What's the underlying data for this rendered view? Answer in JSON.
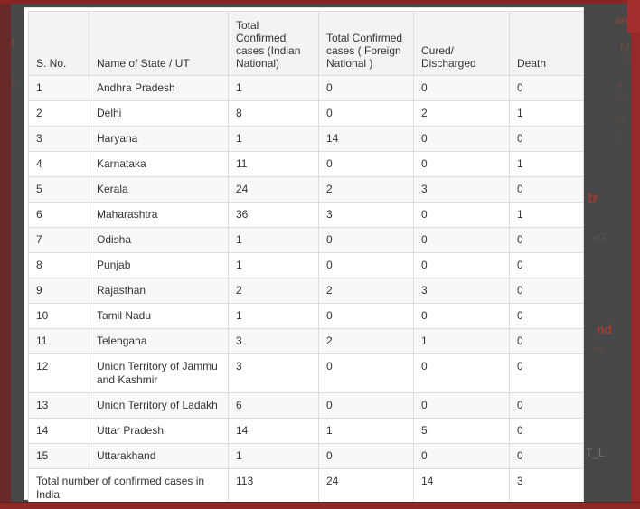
{
  "table": {
    "columns": [
      "S. No.",
      "Name of State / UT",
      "Total Confirmed\ncases (Indian\nNational)",
      "Total Confirmed\ncases ( Foreign\nNational )",
      "Cured/\nDischarged",
      "Death"
    ],
    "rows": [
      [
        "1",
        "Andhra Pradesh",
        "1",
        "0",
        "0",
        "0"
      ],
      [
        "2",
        "Delhi",
        "8",
        "0",
        "2",
        "1"
      ],
      [
        "3",
        "Haryana",
        "1",
        "14",
        "0",
        "0"
      ],
      [
        "4",
        "Karnataka",
        "11",
        "0",
        "0",
        "1"
      ],
      [
        "5",
        "Kerala",
        "24",
        "2",
        "3",
        "0"
      ],
      [
        "6",
        "Maharashtra",
        "36",
        "3",
        "0",
        "1"
      ],
      [
        "7",
        "Odisha",
        "1",
        "0",
        "0",
        "0"
      ],
      [
        "8",
        "Punjab",
        "1",
        "0",
        "0",
        "0"
      ],
      [
        "9",
        "Rajasthan",
        "2",
        "2",
        "3",
        "0"
      ],
      [
        "10",
        "Tamil Nadu",
        "1",
        "0",
        "0",
        "0"
      ],
      [
        "11",
        "Telengana",
        "3",
        "2",
        "1",
        "0"
      ],
      [
        "12",
        "Union Territory of Jammu and Kashmir",
        "3",
        "0",
        "0",
        "0"
      ],
      [
        "13",
        "Union Territory of Ladakh",
        "6",
        "0",
        "0",
        "0"
      ],
      [
        "14",
        "Uttar Pradesh",
        "14",
        "1",
        "5",
        "0"
      ],
      [
        "15",
        "Uttarakhand",
        "1",
        "0",
        "0",
        "0"
      ]
    ],
    "total_row": {
      "label": "Total number of confirmed cases in India",
      "values": [
        "113",
        "24",
        "14",
        "3"
      ]
    }
  },
  "background_fragments": [
    {
      "text": "arc"
    },
    {
      "text": "M"
    },
    {
      "text": "S"
    },
    {
      "text": "A"
    },
    {
      "text": "ne"
    },
    {
      "text": "pl"
    },
    {
      "text": "m"
    },
    {
      "text": "tr"
    },
    {
      "text": "vG"
    },
    {
      "text": "nd"
    },
    {
      "text": "ve"
    },
    {
      "text": "M"
    },
    {
      "text": "c"
    },
    {
      "text": "T_L"
    }
  ],
  "colors": {
    "frame_maroon_left": "#682a28",
    "frame_red_top": "#8a2422",
    "frame_red_right": "#97292a",
    "frame_red_bottom": "#8e2a26",
    "corner_block_red": "#a32e2c",
    "page_dim_background": "#474747",
    "panel_background": "#ffffff",
    "header_row_background": "#f3f3f3",
    "striped_row_background": "#f8f8f8",
    "cell_border": "#dcdcdc",
    "text": "#333333"
  }
}
